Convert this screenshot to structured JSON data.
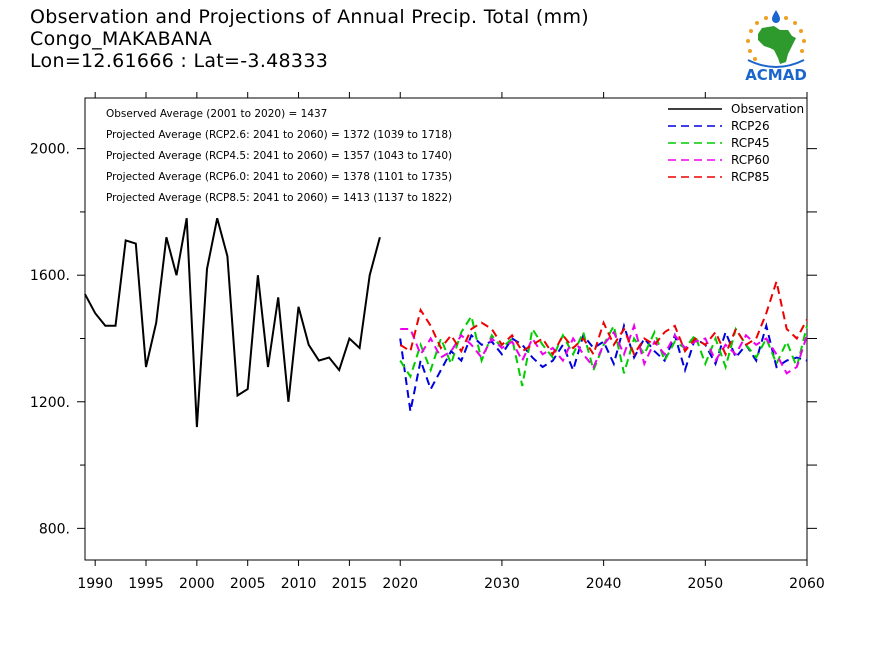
{
  "header": {
    "line1": "Observation and Projections of Annual Precip. Total (mm)",
    "line2": "Congo_MAKABANA",
    "line3": "Lon=12.61666 : Lat=-3.48333"
  },
  "logo": {
    "text": "ACMAD",
    "icon": "africa-logo-icon"
  },
  "chart_data": {
    "type": "line",
    "xlim": [
      1989,
      2060
    ],
    "ylim": [
      700,
      2160
    ],
    "x_ticks": [
      {
        "value": 1990,
        "label": "1990"
      },
      {
        "value": 1995,
        "label": "1995"
      },
      {
        "value": 2000,
        "label": "2000"
      },
      {
        "value": 2005,
        "label": "2005"
      },
      {
        "value": 2010,
        "label": "2010"
      },
      {
        "value": 2015,
        "label": "2015"
      },
      {
        "value": 2020,
        "label": "2020"
      },
      {
        "value": 2030,
        "label": "2030"
      },
      {
        "value": 2040,
        "label": "2040"
      },
      {
        "value": 2050,
        "label": "2050"
      },
      {
        "value": 2060,
        "label": "2060"
      }
    ],
    "y_ticks": [
      {
        "value": 800,
        "label": "800."
      },
      {
        "value": 1200,
        "label": "1200."
      },
      {
        "value": 1600,
        "label": "1600."
      },
      {
        "value": 2000,
        "label": "2000."
      }
    ],
    "y_minor_ticks": [
      1000,
      1400,
      1800
    ],
    "grid": false,
    "legend_position": "top-right",
    "annotations": [
      "Observed Average (2001 to 2020) = 1437",
      "Projected Average (RCP2.6: 2041 to 2060) = 1372 (1039 to 1718)",
      "Projected Average (RCP4.5: 2041 to 2060) = 1357 (1043 to 1740)",
      "Projected Average (RCP6.0: 2041 to 2060) = 1378 (1101 to 1735)",
      "Projected Average (RCP8.5: 2041 to 2060) = 1413 (1137 to 1822)"
    ],
    "observation": {
      "name": "Observation",
      "color": "#000000",
      "x": [
        1989,
        1990,
        1991,
        1992,
        1993,
        1994,
        1995,
        1996,
        1997,
        1998,
        1999,
        2000,
        2001,
        2002,
        2003,
        2004,
        2005,
        2006,
        2007,
        2008,
        2009,
        2010,
        2011,
        2012,
        2013,
        2014,
        2015,
        2016,
        2017,
        2018,
        2019,
        2020
      ],
      "y": [
        1540,
        1480,
        1440,
        1440,
        1710,
        1700,
        1310,
        1450,
        1720,
        1600,
        1780,
        1120,
        1620,
        1780,
        1660,
        1220,
        1240,
        1600,
        1310,
        1530,
        1200,
        1500,
        1380,
        1330,
        1340,
        1300,
        1400,
        1370,
        1600,
        1720,
        null,
        null
      ]
    },
    "series": [
      {
        "name": "RCP26",
        "color": "#0000dd",
        "x": [
          2020,
          2021,
          2022,
          2023,
          2024,
          2025,
          2026,
          2027,
          2028,
          2029,
          2030,
          2031,
          2032,
          2033,
          2034,
          2035,
          2036,
          2037,
          2038,
          2039,
          2040,
          2041,
          2042,
          2043,
          2044,
          2045,
          2046,
          2047,
          2048,
          2049,
          2050,
          2051,
          2052,
          2053,
          2054,
          2055,
          2056,
          2057,
          2058,
          2059,
          2060
        ],
        "y": [
          1400,
          1170,
          1330,
          1240,
          1300,
          1360,
          1330,
          1410,
          1380,
          1390,
          1350,
          1400,
          1380,
          1340,
          1310,
          1330,
          1380,
          1300,
          1410,
          1370,
          1390,
          1320,
          1440,
          1340,
          1400,
          1360,
          1330,
          1410,
          1300,
          1400,
          1380,
          1320,
          1420,
          1340,
          1380,
          1330,
          1440,
          1310,
          1330,
          1340,
          1330
        ]
      },
      {
        "name": "RCP45",
        "color": "#00cc00",
        "x": [
          2020,
          2021,
          2022,
          2023,
          2024,
          2025,
          2026,
          2027,
          2028,
          2029,
          2030,
          2031,
          2032,
          2033,
          2034,
          2035,
          2036,
          2037,
          2038,
          2039,
          2040,
          2041,
          2042,
          2043,
          2044,
          2045,
          2046,
          2047,
          2048,
          2049,
          2050,
          2051,
          2052,
          2053,
          2054,
          2055,
          2056,
          2057,
          2058,
          2059,
          2060
        ],
        "y": [
          1330,
          1280,
          1380,
          1300,
          1400,
          1320,
          1420,
          1470,
          1330,
          1410,
          1370,
          1400,
          1250,
          1430,
          1380,
          1340,
          1410,
          1350,
          1420,
          1300,
          1380,
          1440,
          1290,
          1400,
          1350,
          1420,
          1330,
          1390,
          1370,
          1410,
          1320,
          1400,
          1310,
          1430,
          1380,
          1340,
          1400,
          1320,
          1390,
          1310,
          1440
        ]
      },
      {
        "name": "RCP60",
        "color": "#ee00ee",
        "x": [
          2020,
          2021,
          2022,
          2023,
          2024,
          2025,
          2026,
          2027,
          2028,
          2029,
          2030,
          2031,
          2032,
          2033,
          2034,
          2035,
          2036,
          2037,
          2038,
          2039,
          2040,
          2041,
          2042,
          2043,
          2044,
          2045,
          2046,
          2047,
          2048,
          2049,
          2050,
          2051,
          2052,
          2053,
          2054,
          2055,
          2056,
          2057,
          2058,
          2059,
          2060
        ],
        "y": [
          1430,
          1430,
          1350,
          1400,
          1340,
          1360,
          1410,
          1380,
          1340,
          1400,
          1370,
          1390,
          1330,
          1400,
          1350,
          1370,
          1330,
          1400,
          1350,
          1310,
          1380,
          1420,
          1350,
          1440,
          1320,
          1390,
          1350,
          1410,
          1370,
          1390,
          1400,
          1330,
          1380,
          1350,
          1410,
          1380,
          1400,
          1350,
          1290,
          1310,
          1410
        ]
      },
      {
        "name": "RCP85",
        "color": "#ee0000",
        "x": [
          2020,
          2021,
          2022,
          2023,
          2024,
          2025,
          2026,
          2027,
          2028,
          2029,
          2030,
          2031,
          2032,
          2033,
          2034,
          2035,
          2036,
          2037,
          2038,
          2039,
          2040,
          2041,
          2042,
          2043,
          2044,
          2045,
          2046,
          2047,
          2048,
          2049,
          2050,
          2051,
          2052,
          2053,
          2054,
          2055,
          2056,
          2057,
          2058,
          2059,
          2060
        ],
        "y": [
          1380,
          1360,
          1490,
          1440,
          1370,
          1410,
          1360,
          1430,
          1450,
          1430,
          1380,
          1410,
          1360,
          1380,
          1400,
          1350,
          1410,
          1370,
          1400,
          1350,
          1450,
          1380,
          1430,
          1350,
          1400,
          1380,
          1420,
          1440,
          1360,
          1400,
          1380,
          1420,
          1350,
          1430,
          1380,
          1400,
          1480,
          1580,
          1430,
          1400,
          1460
        ]
      }
    ]
  }
}
